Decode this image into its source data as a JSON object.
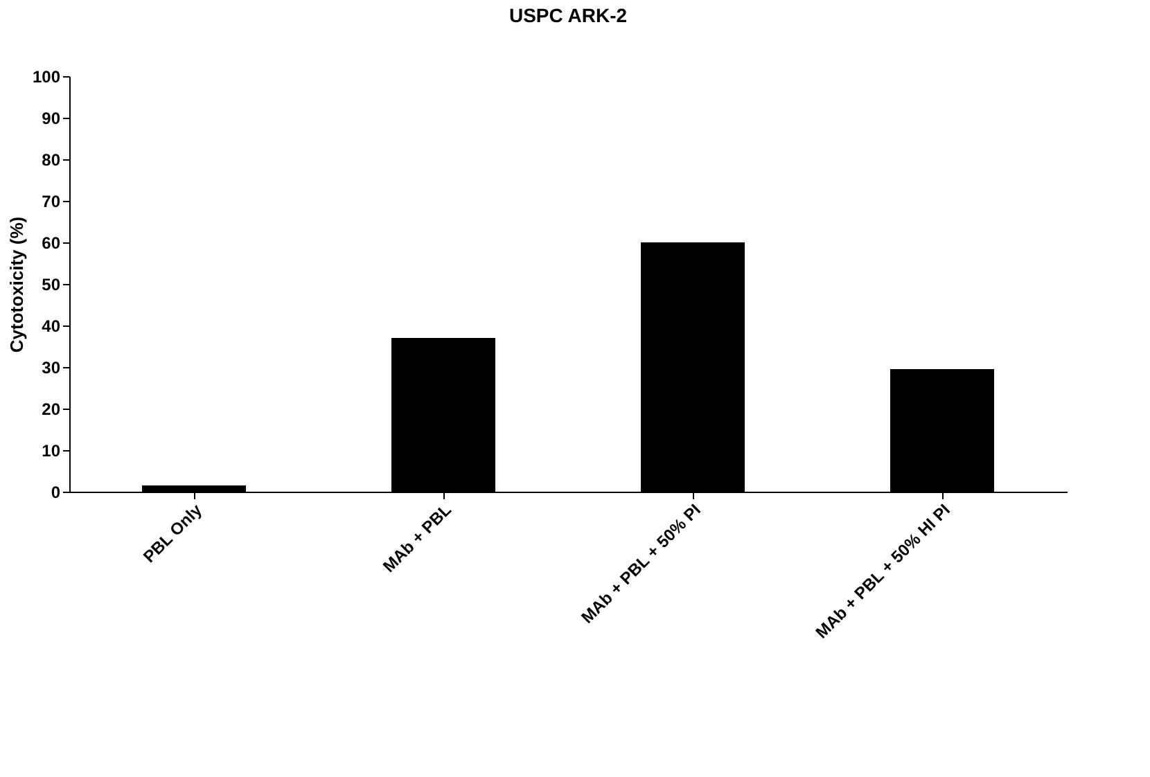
{
  "chart_data": {
    "type": "bar",
    "title": "USPC ARK-2",
    "ylabel": "Cytotoxicity (%)",
    "categories": [
      "PBL Only",
      "MAb + PBL",
      "MAb + PBL + 50% PI",
      "MAb + PBL + 50% HI PI"
    ],
    "values": [
      1.5,
      37,
      60,
      29.5
    ],
    "color": "#000000",
    "ylim": [
      0,
      100
    ],
    "yticks": [
      0,
      10,
      20,
      30,
      40,
      50,
      60,
      70,
      80,
      90,
      100
    ],
    "grid": false
  }
}
